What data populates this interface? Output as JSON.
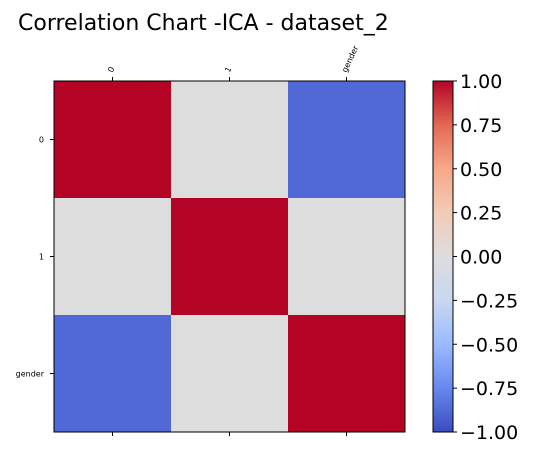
{
  "chart_data": {
    "type": "heatmap",
    "title": "Correlation Chart -ICA - dataset_2",
    "x_labels": [
      "0",
      "1",
      "gender"
    ],
    "y_labels": [
      "0",
      "1",
      "gender"
    ],
    "values": [
      [
        1.0,
        0.0,
        -0.88
      ],
      [
        0.0,
        1.0,
        0.0
      ],
      [
        -0.88,
        0.0,
        1.0
      ]
    ],
    "colormap": "coolwarm",
    "colormap_stops": [
      "#3b4cc0",
      "#6788ee",
      "#9abbff",
      "#c9d7f0",
      "#dddddd",
      "#f2cbb7",
      "#f7a889",
      "#e26952",
      "#b40426"
    ],
    "vmin": -1.0,
    "vmax": 1.0,
    "colorbar": {
      "ticks": [
        1.0,
        0.75,
        0.5,
        0.25,
        0.0,
        -0.25,
        -0.5,
        -0.75,
        -1.0
      ],
      "tick_labels": [
        "1.00",
        "0.75",
        "0.50",
        "0.25",
        "0.00",
        "−0.25",
        "−0.50",
        "−0.75",
        "−1.00"
      ]
    },
    "x_tick_rotation_deg": -65,
    "grid": false
  }
}
